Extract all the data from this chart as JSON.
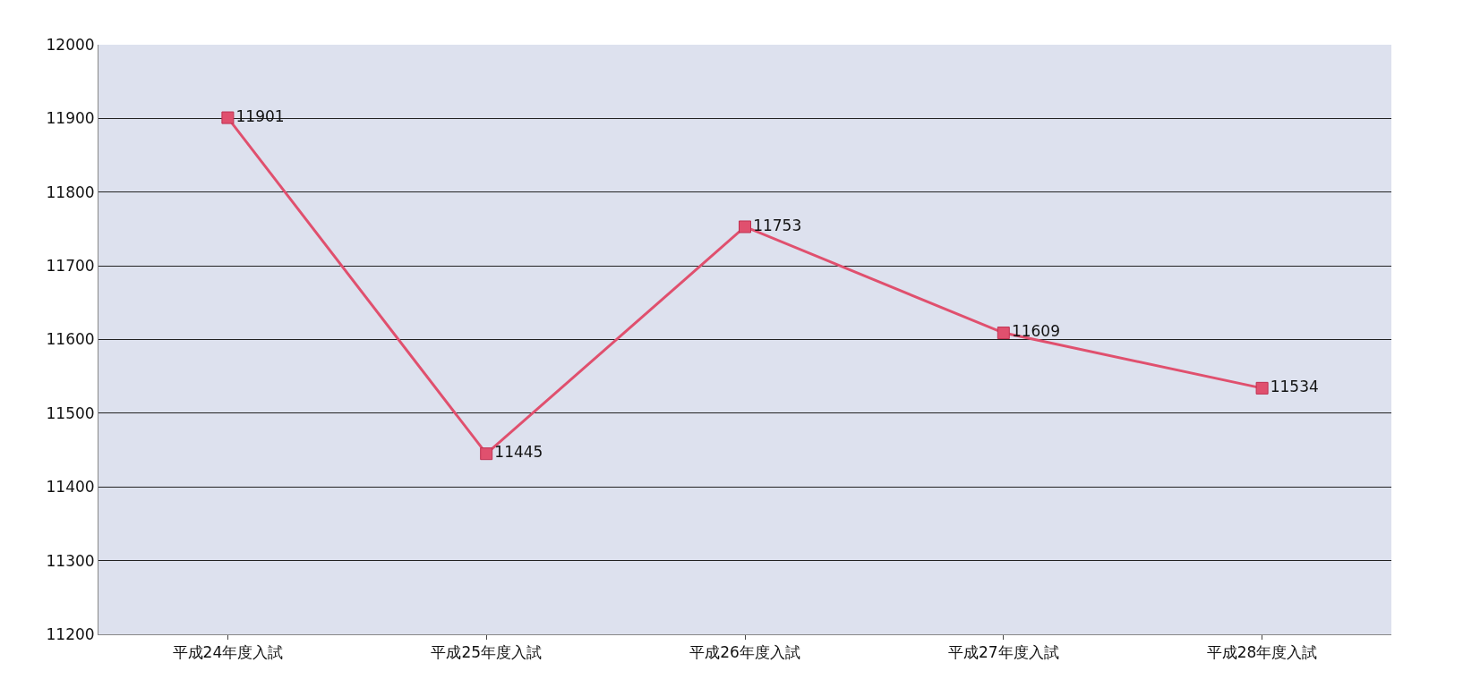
{
  "chart_data": {
    "type": "line",
    "categories": [
      "平成24年度入試",
      "平成25年度入試",
      "平成26年度入試",
      "平成27年度入試",
      "平成28年度入試"
    ],
    "series": [
      {
        "color": "#e0506e",
        "values": [
          11901,
          11445,
          11753,
          11609,
          11534
        ]
      }
    ],
    "ylim": [
      11200,
      12000
    ],
    "yticks": [
      11200,
      11300,
      11400,
      11500,
      11600,
      11700,
      11800,
      11900,
      12000
    ],
    "grid": "y",
    "marker": "square",
    "line_style": "solid",
    "data_labels": true,
    "legend": false
  }
}
